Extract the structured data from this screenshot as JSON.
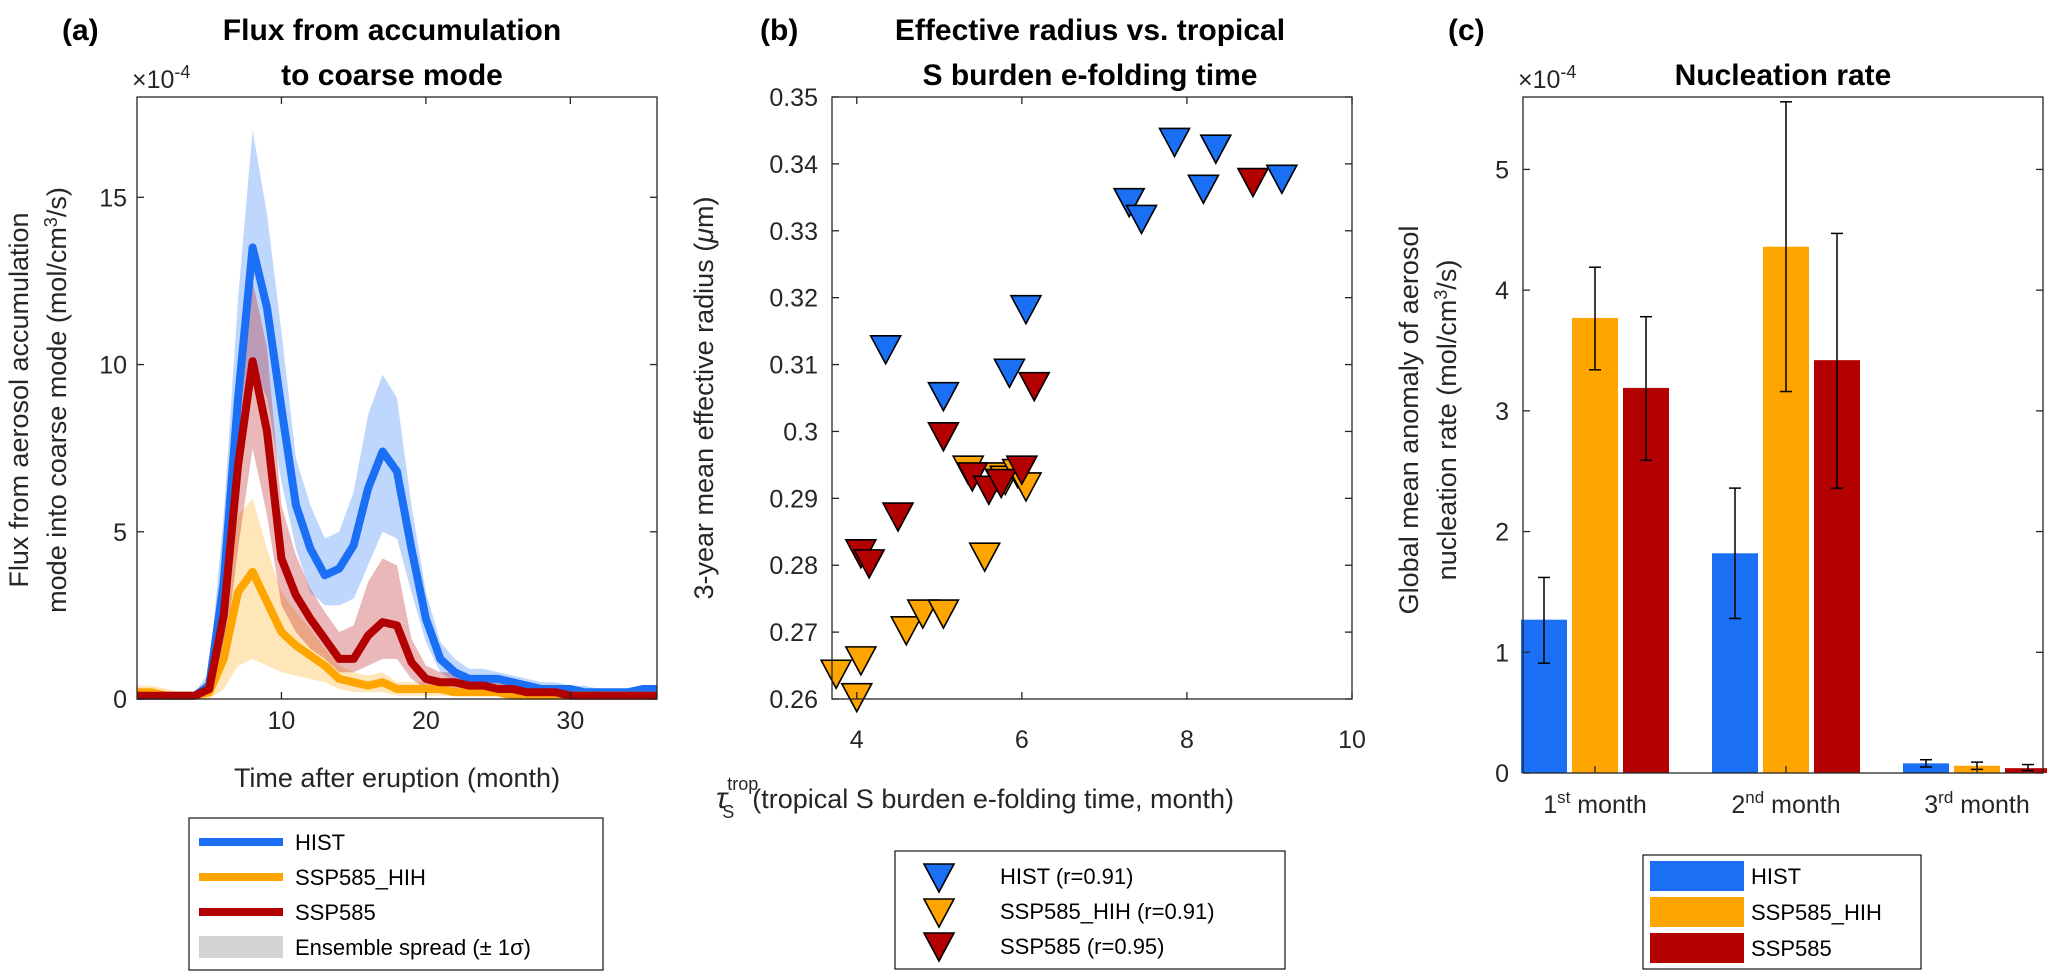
{
  "colors": {
    "hist": "#1a6ff5",
    "hih": "#ffa500",
    "ssp": "#b30000"
  },
  "chart_data": [
    {
      "type": "line",
      "panel_label": "(a)",
      "title": [
        "Flux from accumulation",
        "to coarse mode"
      ],
      "multiplier": "×10",
      "multiplier_exp": "-4",
      "xlabel": "Time after eruption (month)",
      "ylabel_line1": "Flux from aerosol accumulation",
      "ylabel_line2_pre": "mode into coarse mode (mol/cm",
      "ylabel_sup": "3",
      "ylabel_post": "/s)",
      "xlim": [
        0,
        36
      ],
      "ylim": [
        0,
        18
      ],
      "x_ticks": [
        10,
        20,
        30
      ],
      "y_ticks": [
        0,
        5,
        10,
        15
      ],
      "x": [
        0,
        1,
        2,
        3,
        4,
        5,
        6,
        7,
        8,
        9,
        10,
        11,
        12,
        13,
        14,
        15,
        16,
        17,
        18,
        19,
        20,
        21,
        22,
        23,
        24,
        25,
        26,
        27,
        28,
        29,
        30,
        31,
        32,
        33,
        34,
        35,
        36
      ],
      "series": [
        {
          "name": "HIST",
          "values": [
            0.1,
            0.1,
            0.1,
            0.1,
            0.1,
            0.4,
            3.5,
            9.0,
            13.5,
            11.7,
            8.7,
            5.8,
            4.5,
            3.7,
            3.9,
            4.6,
            6.3,
            7.4,
            6.8,
            4.5,
            2.4,
            1.2,
            0.8,
            0.6,
            0.6,
            0.6,
            0.5,
            0.4,
            0.3,
            0.3,
            0.3,
            0.2,
            0.2,
            0.2,
            0.2,
            0.3,
            0.3
          ],
          "lower": [
            0.0,
            0.0,
            0.0,
            0.0,
            0.0,
            0.1,
            1.5,
            6.0,
            10.0,
            9.0,
            6.5,
            4.5,
            3.2,
            2.8,
            2.8,
            3.0,
            4.0,
            5.0,
            4.8,
            3.2,
            1.7,
            0.8,
            0.5,
            0.4,
            0.4,
            0.4,
            0.3,
            0.3,
            0.2,
            0.2,
            0.2,
            0.1,
            0.1,
            0.1,
            0.1,
            0.2,
            0.2
          ],
          "upper": [
            0.3,
            0.3,
            0.2,
            0.2,
            0.2,
            0.8,
            5.5,
            12.0,
            17.0,
            14.5,
            11.0,
            7.2,
            5.8,
            4.8,
            5.0,
            6.2,
            8.5,
            9.7,
            9.0,
            5.8,
            3.2,
            1.7,
            1.2,
            0.9,
            0.9,
            0.8,
            0.7,
            0.6,
            0.5,
            0.5,
            0.4,
            0.4,
            0.3,
            0.3,
            0.3,
            0.4,
            0.4
          ]
        },
        {
          "name": "SSP585_HIH",
          "values": [
            0.2,
            0.2,
            0.1,
            0.1,
            0.1,
            0.2,
            1.2,
            3.2,
            3.8,
            2.9,
            2.0,
            1.6,
            1.3,
            1.0,
            0.6,
            0.5,
            0.4,
            0.5,
            0.3,
            0.3,
            0.3,
            0.3,
            0.2,
            0.2,
            0.2,
            0.2,
            0.1,
            0.1,
            0.1,
            0.1,
            0.1,
            0.1,
            0.1,
            0.1,
            0.1,
            0.1,
            0.1
          ],
          "lower": [
            0.1,
            0.1,
            0.0,
            0.0,
            0.0,
            0.0,
            0.3,
            1.0,
            1.2,
            1.0,
            0.8,
            0.7,
            0.6,
            0.5,
            0.3,
            0.2,
            0.2,
            0.2,
            0.1,
            0.1,
            0.1,
            0.1,
            0.1,
            0.1,
            0.1,
            0.1,
            0.0,
            0.0,
            0.0,
            0.0,
            0.0,
            0.0,
            0.0,
            0.0,
            0.0,
            0.0,
            0.0
          ],
          "upper": [
            0.4,
            0.4,
            0.3,
            0.2,
            0.2,
            0.5,
            2.5,
            5.5,
            6.0,
            4.5,
            3.2,
            2.6,
            2.1,
            1.5,
            1.0,
            0.8,
            0.7,
            0.8,
            0.5,
            0.5,
            0.5,
            0.5,
            0.4,
            0.4,
            0.4,
            0.3,
            0.2,
            0.2,
            0.2,
            0.2,
            0.2,
            0.2,
            0.2,
            0.2,
            0.2,
            0.2,
            0.2
          ]
        },
        {
          "name": "SSP585",
          "values": [
            0.1,
            0.1,
            0.1,
            0.1,
            0.1,
            0.3,
            2.5,
            7.0,
            10.1,
            8.0,
            4.2,
            3.1,
            2.4,
            1.8,
            1.2,
            1.2,
            1.9,
            2.3,
            2.2,
            1.1,
            0.6,
            0.5,
            0.5,
            0.4,
            0.4,
            0.3,
            0.3,
            0.2,
            0.2,
            0.2,
            0.1,
            0.1,
            0.1,
            0.1,
            0.1,
            0.1,
            0.1
          ],
          "lower": [
            0.0,
            0.0,
            0.0,
            0.0,
            0.0,
            0.1,
            1.0,
            4.5,
            7.5,
            5.5,
            2.8,
            2.0,
            1.5,
            1.2,
            0.8,
            0.8,
            1.0,
            1.2,
            1.2,
            0.6,
            0.3,
            0.3,
            0.3,
            0.2,
            0.2,
            0.2,
            0.1,
            0.1,
            0.1,
            0.1,
            0.0,
            0.0,
            0.0,
            0.0,
            0.0,
            0.0,
            0.0
          ],
          "upper": [
            0.3,
            0.3,
            0.2,
            0.2,
            0.2,
            0.6,
            4.5,
            9.5,
            12.5,
            10.5,
            5.8,
            4.3,
            3.3,
            2.6,
            2.0,
            2.2,
            3.5,
            4.2,
            4.0,
            1.8,
            1.0,
            0.8,
            0.8,
            0.6,
            0.6,
            0.5,
            0.4,
            0.4,
            0.3,
            0.3,
            0.2,
            0.2,
            0.2,
            0.2,
            0.2,
            0.2,
            0.2
          ]
        }
      ],
      "legend": [
        "HIST",
        "SSP585_HIH",
        "SSP585",
        "Ensemble spread (± 1σ)"
      ]
    },
    {
      "type": "scatter",
      "panel_label": "(b)",
      "title": [
        "Effective radius vs. tropical",
        "S burden e-folding time"
      ],
      "xlabel_sym": "τ",
      "xlabel_sub": "S",
      "xlabel_sup": "trop",
      "xlabel_text": "(tropical S burden e-folding time, month)",
      "ylabel_pre": "3-year mean effective radius (",
      "ylabel_mu": "μ",
      "ylabel_post": "m)",
      "xlim": [
        3.7,
        10
      ],
      "ylim": [
        0.26,
        0.35
      ],
      "x_ticks": [
        4,
        6,
        8,
        10
      ],
      "y_ticks": [
        0.26,
        0.27,
        0.28,
        0.29,
        0.3,
        0.31,
        0.32,
        0.33,
        0.34,
        0.35
      ],
      "y_tick_labels": [
        "0.26",
        "0.27",
        "0.28",
        "0.29",
        "0.3",
        "0.31",
        "0.32",
        "0.33",
        "0.34",
        "0.35"
      ],
      "series": [
        {
          "name": "HIST",
          "r": "(r=0.91)",
          "points": [
            [
              4.35,
              0.3125
            ],
            [
              5.05,
              0.3055
            ],
            [
              5.85,
              0.309
            ],
            [
              6.05,
              0.3185
            ],
            [
              7.3,
              0.3345
            ],
            [
              7.45,
              0.332
            ],
            [
              7.85,
              0.3435
            ],
            [
              8.2,
              0.3365
            ],
            [
              8.35,
              0.3425
            ],
            [
              9.15,
              0.338
            ]
          ]
        },
        {
          "name": "SSP585_HIH",
          "r": "(r=0.91)",
          "points": [
            [
              3.75,
              0.264
            ],
            [
              4.0,
              0.2605
            ],
            [
              4.05,
              0.266
            ],
            [
              4.6,
              0.2705
            ],
            [
              4.8,
              0.273
            ],
            [
              5.05,
              0.273
            ],
            [
              5.35,
              0.2945
            ],
            [
              5.55,
              0.2815
            ],
            [
              5.7,
              0.2935
            ],
            [
              5.8,
              0.293
            ],
            [
              5.95,
              0.294
            ],
            [
              6.05,
              0.292
            ]
          ]
        },
        {
          "name": "SSP585",
          "r": "(r=0.95)",
          "points": [
            [
              4.05,
              0.282
            ],
            [
              4.15,
              0.2805
            ],
            [
              4.5,
              0.2875
            ],
            [
              5.05,
              0.2995
            ],
            [
              5.4,
              0.2935
            ],
            [
              5.6,
              0.2915
            ],
            [
              5.75,
              0.2925
            ],
            [
              6.0,
              0.2945
            ],
            [
              6.15,
              0.307
            ],
            [
              8.8,
              0.3375
            ]
          ]
        }
      ],
      "legend": [
        "HIST  (r=0.91)",
        "SSP585_HIH  (r=0.91)",
        "SSP585  (r=0.95)"
      ]
    },
    {
      "type": "bar",
      "panel_label": "(c)",
      "title": "Nucleation rate",
      "multiplier": "×10",
      "multiplier_exp": "-4",
      "ylabel_line1": "Global mean anomaly of aerosol",
      "ylabel_line2_pre": "nucleation rate (mol/cm",
      "ylabel_sup": "3",
      "ylabel_post": "/s)",
      "ylim": [
        0,
        5.6
      ],
      "y_ticks": [
        0,
        1,
        2,
        3,
        4,
        5
      ],
      "categories": [
        {
          "num": "1",
          "sup": "st",
          "label": "month"
        },
        {
          "num": "2",
          "sup": "nd",
          "label": "month"
        },
        {
          "num": "3",
          "sup": "rd",
          "label": "month"
        }
      ],
      "series": [
        {
          "name": "HIST",
          "values": [
            1.27,
            1.82,
            0.08
          ],
          "err_low": [
            0.91,
            1.28,
            0.05
          ],
          "err_high": [
            1.62,
            2.36,
            0.11
          ]
        },
        {
          "name": "SSP585_HIH",
          "values": [
            3.77,
            4.36,
            0.06
          ],
          "err_low": [
            3.34,
            3.16,
            0.03
          ],
          "err_high": [
            4.19,
            5.56,
            0.09
          ]
        },
        {
          "name": "SSP585",
          "values": [
            3.19,
            3.42,
            0.04
          ],
          "err_low": [
            2.59,
            2.36,
            0.02
          ],
          "err_high": [
            3.78,
            4.47,
            0.07
          ]
        }
      ],
      "legend": [
        "HIST",
        "SSP585_HIH",
        "SSP585"
      ]
    }
  ]
}
